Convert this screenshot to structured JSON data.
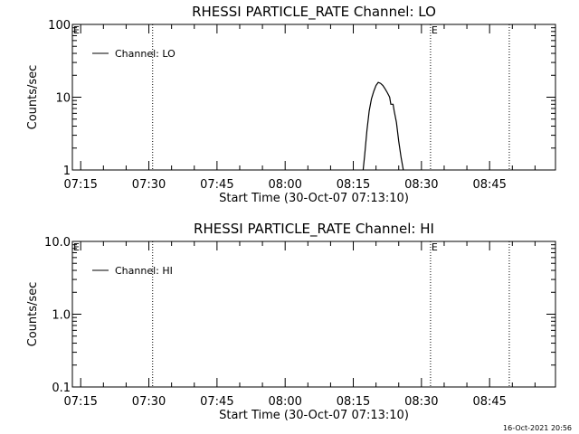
{
  "chart_data": [
    {
      "type": "line",
      "title": "RHESSI PARTICLE_RATE Channel: LO",
      "xlabel": "Start Time (30-Oct-07 07:13:10)",
      "ylabel": "Counts/sec",
      "y_scale": "log",
      "ylim": [
        1,
        100
      ],
      "y_ticks": [
        {
          "v": 1,
          "label": "1"
        },
        {
          "v": 10,
          "label": "10"
        },
        {
          "v": 100,
          "label": "100"
        }
      ],
      "xlim": [
        "07:13:10",
        "08:59:30"
      ],
      "x_ticks": [
        "07:15",
        "07:30",
        "07:45",
        "08:00",
        "08:15",
        "08:30",
        "08:45"
      ],
      "legend": {
        "position": "top-left",
        "entries": [
          "Channel: LO"
        ]
      },
      "event_lines": [
        {
          "time": "07:30:50",
          "label": ""
        },
        {
          "time": "08:32:00",
          "label": "E"
        },
        {
          "time": "08:49:20",
          "label": ""
        }
      ],
      "corner_label": "E",
      "series": [
        {
          "name": "Channel: LO",
          "points": [
            [
              "08:17:10",
              1.0
            ],
            [
              "08:17:30",
              1.6
            ],
            [
              "08:18:00",
              3.5
            ],
            [
              "08:18:30",
              6.5
            ],
            [
              "08:19:00",
              9.5
            ],
            [
              "08:19:30",
              12.0
            ],
            [
              "08:20:00",
              14.5
            ],
            [
              "08:20:30",
              16.0
            ],
            [
              "08:21:00",
              15.5
            ],
            [
              "08:21:30",
              14.5
            ],
            [
              "08:22:00",
              13.0
            ],
            [
              "08:22:30",
              11.5
            ],
            [
              "08:23:00",
              10.0
            ],
            [
              "08:23:15",
              8.0
            ],
            [
              "08:23:45",
              8.0
            ],
            [
              "08:24:00",
              6.5
            ],
            [
              "08:24:30",
              4.5
            ],
            [
              "08:25:00",
              2.5
            ],
            [
              "08:25:30",
              1.5
            ],
            [
              "08:26:00",
              1.0
            ]
          ]
        }
      ]
    },
    {
      "type": "line",
      "title": "RHESSI PARTICLE_RATE Channel: HI",
      "xlabel": "Start Time (30-Oct-07 07:13:10)",
      "ylabel": "Counts/sec",
      "y_scale": "log",
      "ylim": [
        0.1,
        10
      ],
      "y_ticks": [
        {
          "v": 0.1,
          "label": "0.1"
        },
        {
          "v": 1,
          "label": "1.0"
        },
        {
          "v": 10,
          "label": "10.0"
        }
      ],
      "xlim": [
        "07:13:10",
        "08:59:30"
      ],
      "x_ticks": [
        "07:15",
        "07:30",
        "07:45",
        "08:00",
        "08:15",
        "08:30",
        "08:45"
      ],
      "legend": {
        "position": "top-left",
        "entries": [
          "Channel: HI"
        ]
      },
      "event_lines": [
        {
          "time": "07:30:50",
          "label": ""
        },
        {
          "time": "08:32:00",
          "label": "E"
        },
        {
          "time": "08:49:20",
          "label": ""
        }
      ],
      "corner_label": "E",
      "series": [
        {
          "name": "Channel: HI",
          "points": []
        }
      ]
    }
  ],
  "footer": {
    "timestamp": "16-Oct-2021 20:56"
  }
}
